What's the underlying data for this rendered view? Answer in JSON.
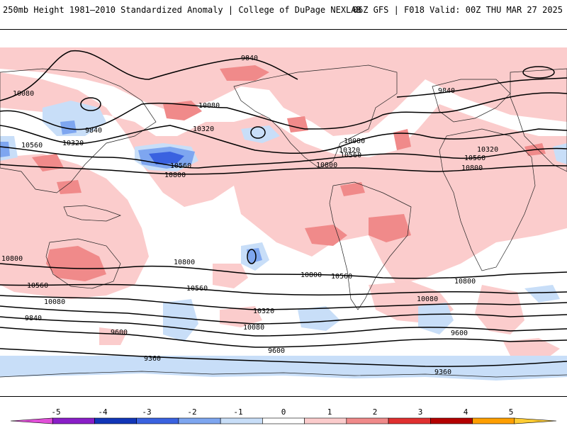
{
  "header": {
    "title_left": "250mb Height 1981–2010 Standardized Anomaly | College of DuPage NEXLAB",
    "title_right": "06Z GFS | F018 Valid: 00Z THU MAR 27 2025"
  },
  "colorbar": {
    "ticks": [
      "-5",
      "-4",
      "-3",
      "-2",
      "-1",
      "0",
      "1",
      "2",
      "3",
      "4",
      "5"
    ],
    "colors": [
      "#e14fd8",
      "#8a1ec8",
      "#1236b8",
      "#3a62e0",
      "#7ea6f0",
      "#c8def8",
      "#ffffff",
      "#fbcccc",
      "#f08a8a",
      "#e03030",
      "#b40000",
      "#ff9f00",
      "#ffcc33"
    ]
  },
  "colors": {
    "neg1": "#c8def8",
    "neg2": "#7ea6f0",
    "neg3": "#3a62e0",
    "pos1": "#fbcccc",
    "pos2": "#f08a8a",
    "pos3": "#e03030",
    "contour": "#000000",
    "coast": "#222222"
  },
  "contour_labels": [
    "9840",
    "9840",
    "9840",
    "9840",
    "10080",
    "10080",
    "10080",
    "10080",
    "10080",
    "10080",
    "10320",
    "10320",
    "10320",
    "10320",
    "10320",
    "10560",
    "10560",
    "10560",
    "10560",
    "10560",
    "10560",
    "10560",
    "10800",
    "10800",
    "10800",
    "10800",
    "10800",
    "10800",
    "10800",
    "9600",
    "9600",
    "9600",
    "9360",
    "9360"
  ]
}
